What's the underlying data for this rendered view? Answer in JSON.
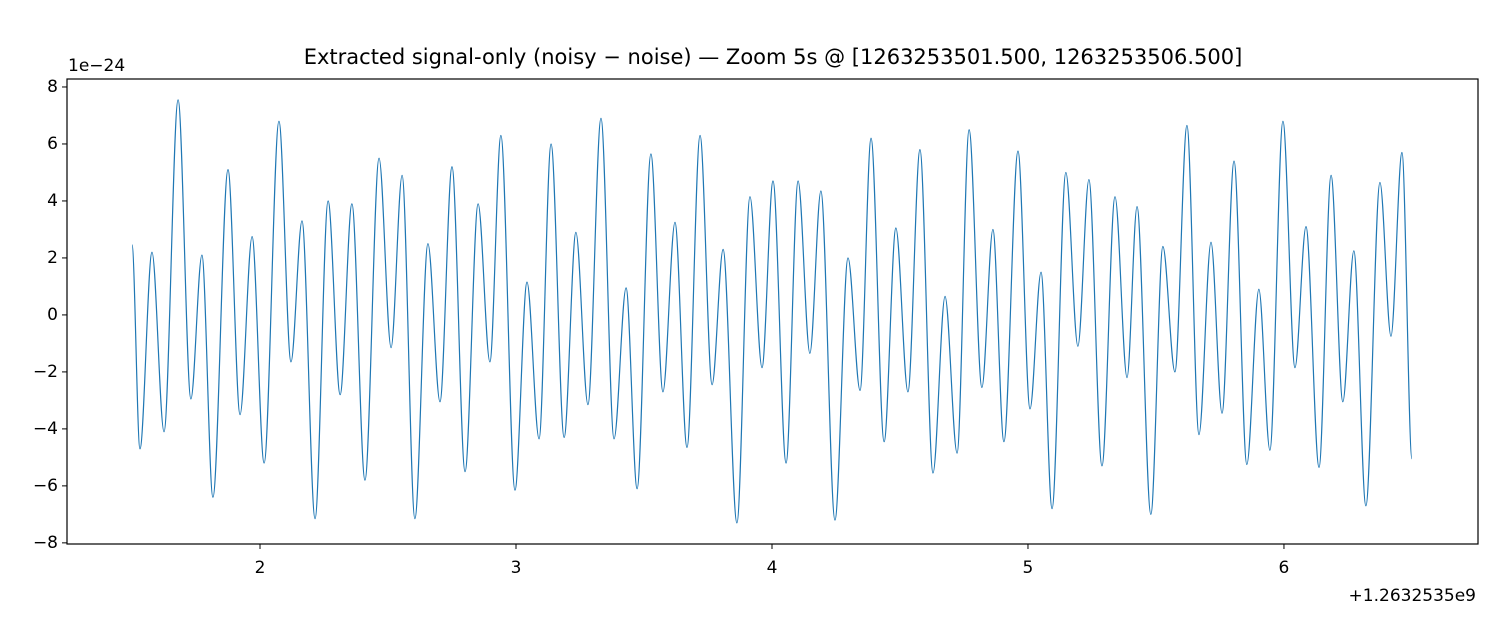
{
  "chart_data": {
    "type": "line",
    "title": "Extracted signal-only (noisy − noise) — Zoom 5s @ [1263253501.500, 1263253506.500]",
    "y_multiplier": "1e−24",
    "x_offset": "+1.2632535e9",
    "xlim": [
      1.246,
      6.758
    ],
    "ylim": [
      -8.04,
      8.28
    ],
    "xticks": [
      2,
      3,
      4,
      5,
      6
    ],
    "yticks": [
      {
        "value": -8,
        "label": "−8"
      },
      {
        "value": -6,
        "label": "−6"
      },
      {
        "value": -4,
        "label": "−4"
      },
      {
        "value": -2,
        "label": "−2"
      },
      0,
      2,
      4,
      6,
      8
    ],
    "series": [
      {
        "color": "#1f77b4",
        "x": [
          1.5,
          1.531,
          1.578,
          1.625,
          1.68,
          1.73,
          1.773,
          1.816,
          1.875,
          1.922,
          1.969,
          2.016,
          2.074,
          2.121,
          2.164,
          2.215,
          2.266,
          2.313,
          2.359,
          2.41,
          2.465,
          2.512,
          2.555,
          2.605,
          2.656,
          2.703,
          2.75,
          2.801,
          2.852,
          2.898,
          2.941,
          2.996,
          3.043,
          3.09,
          3.137,
          3.188,
          3.234,
          3.281,
          3.332,
          3.383,
          3.43,
          3.473,
          3.527,
          3.574,
          3.621,
          3.668,
          3.719,
          3.766,
          3.809,
          3.863,
          3.914,
          3.961,
          4.004,
          4.055,
          4.102,
          4.148,
          4.191,
          4.246,
          4.297,
          4.344,
          4.387,
          4.438,
          4.484,
          4.531,
          4.578,
          4.629,
          4.676,
          4.723,
          4.77,
          4.82,
          4.863,
          4.906,
          4.961,
          5.008,
          5.051,
          5.094,
          5.148,
          5.195,
          5.238,
          5.289,
          5.34,
          5.387,
          5.426,
          5.48,
          5.527,
          5.574,
          5.621,
          5.668,
          5.715,
          5.758,
          5.805,
          5.855,
          5.902,
          5.945,
          5.996,
          6.043,
          6.086,
          6.137,
          6.184,
          6.23,
          6.273,
          6.32,
          6.375,
          6.418,
          6.461,
          6.5
        ],
        "values": [
          2.46,
          -4.7,
          2.2,
          -4.1,
          7.55,
          -2.95,
          2.1,
          -6.4,
          5.1,
          -3.5,
          2.75,
          -5.2,
          6.8,
          -1.65,
          3.3,
          -7.15,
          4.0,
          -2.8,
          3.9,
          -5.8,
          5.5,
          -1.15,
          4.9,
          -7.15,
          2.5,
          -3.05,
          5.2,
          -5.5,
          3.9,
          -1.65,
          6.3,
          -6.15,
          1.15,
          -4.35,
          6.0,
          -4.3,
          2.9,
          -3.15,
          6.9,
          -4.35,
          0.95,
          -6.1,
          5.65,
          -2.7,
          3.25,
          -4.65,
          6.3,
          -2.45,
          2.3,
          -7.3,
          4.15,
          -1.85,
          4.7,
          -5.2,
          4.7,
          -1.35,
          4.35,
          -7.2,
          2.0,
          -2.65,
          6.2,
          -4.45,
          3.05,
          -2.7,
          5.8,
          -5.55,
          0.65,
          -4.85,
          6.5,
          -2.55,
          3.0,
          -4.45,
          5.75,
          -3.3,
          1.5,
          -6.8,
          5.0,
          -1.1,
          4.75,
          -5.3,
          4.15,
          -2.2,
          3.8,
          -7.0,
          2.4,
          -2.0,
          6.65,
          -4.2,
          2.55,
          -3.45,
          5.4,
          -5.25,
          0.9,
          -4.75,
          6.8,
          -1.85,
          3.1,
          -5.35,
          4.9,
          -3.05,
          2.25,
          -6.7,
          4.65,
          -0.75,
          5.7,
          -5.05
        ]
      }
    ]
  }
}
